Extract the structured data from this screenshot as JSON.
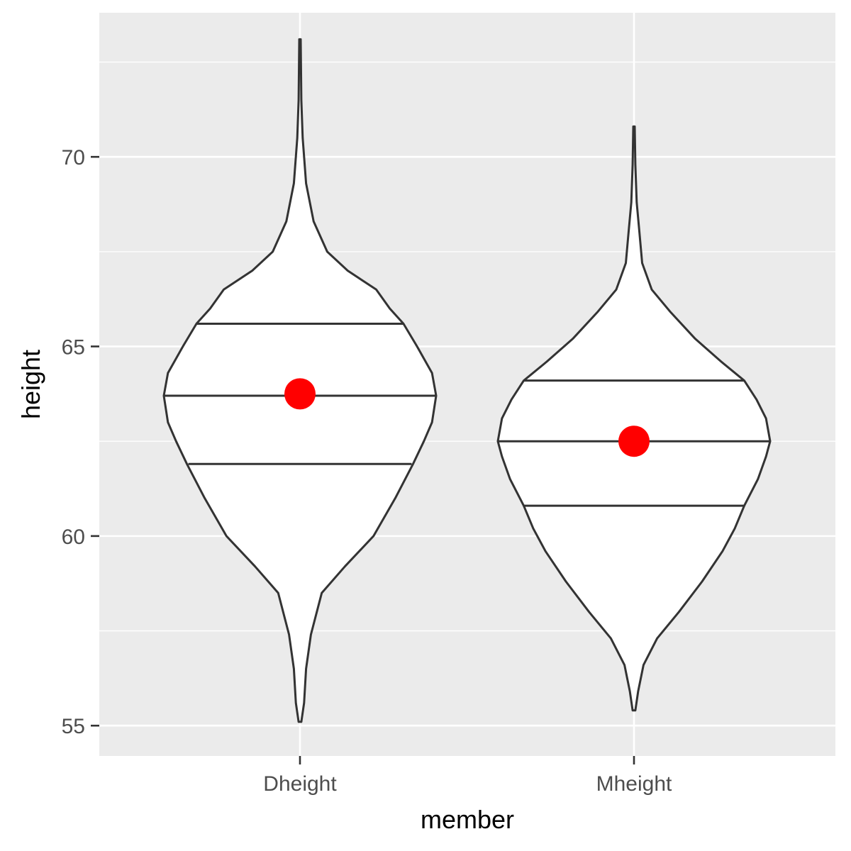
{
  "chart_data": {
    "type": "violin",
    "xlabel": "member",
    "ylabel": "height",
    "categories": [
      "Dheight",
      "Mheight"
    ],
    "ylim": [
      54.2,
      73.8
    ],
    "y_ticks": [
      55,
      60,
      65,
      70
    ],
    "y_tick_labels": [
      "55",
      "60",
      "65",
      "70"
    ],
    "grid": true,
    "background": "#EBEBEB",
    "violins": [
      {
        "name": "Dheight",
        "range": [
          55.1,
          73.1
        ],
        "quantiles": [
          61.9,
          63.7,
          65.6
        ],
        "mean": 63.75,
        "density_profile": [
          [
            55.1,
            0.01
          ],
          [
            55.6,
            0.03
          ],
          [
            56.5,
            0.045
          ],
          [
            57.4,
            0.08
          ],
          [
            58.5,
            0.16
          ],
          [
            59.2,
            0.33
          ],
          [
            60.0,
            0.54
          ],
          [
            61.0,
            0.7
          ],
          [
            61.9,
            0.83
          ],
          [
            62.5,
            0.91
          ],
          [
            63.0,
            0.97
          ],
          [
            63.7,
            1.0
          ],
          [
            64.3,
            0.97
          ],
          [
            65.0,
            0.86
          ],
          [
            65.6,
            0.76
          ],
          [
            66.0,
            0.66
          ],
          [
            66.5,
            0.56
          ],
          [
            67.0,
            0.35
          ],
          [
            67.5,
            0.2
          ],
          [
            68.3,
            0.1
          ],
          [
            69.3,
            0.045
          ],
          [
            70.5,
            0.02
          ],
          [
            71.5,
            0.01
          ],
          [
            73.1,
            0.005
          ]
        ],
        "quantile_half_widths": [
          0.82,
          1.0,
          0.76
        ]
      },
      {
        "name": "Mheight",
        "range": [
          55.4,
          70.8
        ],
        "quantiles": [
          60.8,
          62.5,
          64.1
        ],
        "mean": 62.5,
        "density_profile": [
          [
            55.4,
            0.01
          ],
          [
            55.9,
            0.03
          ],
          [
            56.6,
            0.07
          ],
          [
            57.3,
            0.17
          ],
          [
            58.0,
            0.33
          ],
          [
            58.8,
            0.5
          ],
          [
            59.6,
            0.65
          ],
          [
            60.2,
            0.74
          ],
          [
            60.8,
            0.81
          ],
          [
            61.5,
            0.91
          ],
          [
            62.1,
            0.97
          ],
          [
            62.5,
            1.0
          ],
          [
            63.1,
            0.97
          ],
          [
            63.6,
            0.9
          ],
          [
            64.1,
            0.81
          ],
          [
            64.6,
            0.64
          ],
          [
            65.2,
            0.45
          ],
          [
            65.9,
            0.27
          ],
          [
            66.5,
            0.13
          ],
          [
            67.2,
            0.06
          ],
          [
            68.0,
            0.04
          ],
          [
            68.8,
            0.02
          ],
          [
            69.8,
            0.01
          ],
          [
            70.8,
            0.005
          ]
        ],
        "quantile_half_widths": [
          0.81,
          1.0,
          0.81
        ]
      }
    ],
    "colors": {
      "panel": "#EBEBEB",
      "outline": "#333333",
      "mean_point": "#FF0000",
      "violin_fill": "#FFFFFF"
    }
  }
}
